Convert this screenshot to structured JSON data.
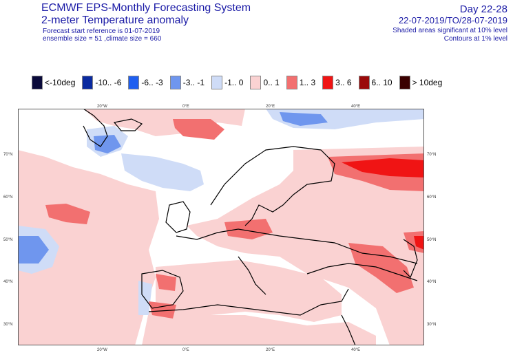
{
  "header": {
    "title": "ECMWF EPS-Monthly Forecasting System",
    "subtitle": "2-meter Temperature anomaly",
    "start_reference": "Forecast start reference is 01-07-2019",
    "ensemble": "ensemble size = 51  ,climate size = 660",
    "day_range": "Day 22-28",
    "date_range": "22-07-2019/TO/28-07-2019",
    "shaded_note": "Shaded areas significant at 10% level",
    "contour_note": "Contours at 1% level"
  },
  "legend": [
    {
      "label": "<-10deg",
      "color": "#0a0a3a"
    },
    {
      "label": "-10.. -6",
      "color": "#0a2aa0"
    },
    {
      "label": "-6.. -3",
      "color": "#1f5ff0"
    },
    {
      "label": "-3.. -1",
      "color": "#6f96ee"
    },
    {
      "label": "-1.. 0",
      "color": "#cfdcf7"
    },
    {
      "label": "0.. 1",
      "color": "#fad2d2"
    },
    {
      "label": "1.. 3",
      "color": "#f27070"
    },
    {
      "label": "3.. 6",
      "color": "#f01414"
    },
    {
      "label": "6.. 10",
      "color": "#9a0a0a"
    },
    {
      "label": "> 10deg",
      "color": "#3a0000"
    }
  ],
  "map": {
    "lon_labels": [
      "20°W",
      "0°E",
      "20°E",
      "40°E"
    ],
    "lat_labels": [
      "70°N",
      "60°N",
      "50°N",
      "40°N",
      "30°N"
    ]
  }
}
